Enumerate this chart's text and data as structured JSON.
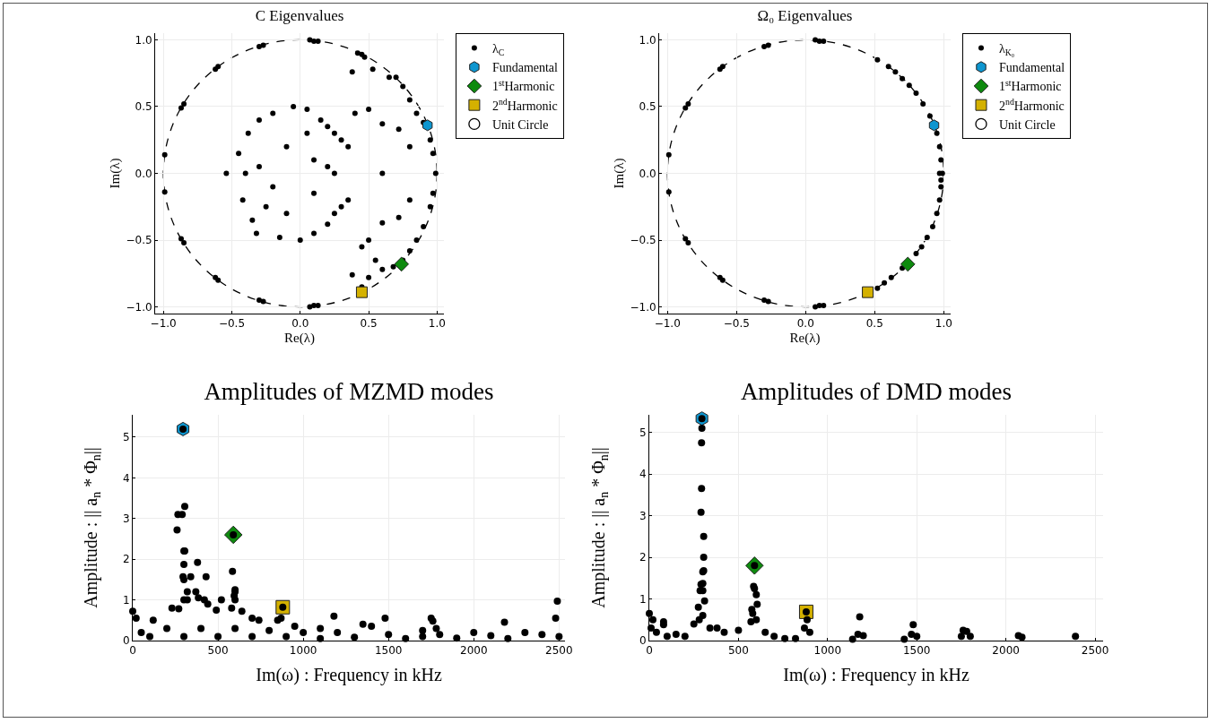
{
  "chart_data": [
    {
      "type": "scatter",
      "title": "C Eigenvalues",
      "xlabel": "Re(λ)",
      "ylabel": "Im(λ)",
      "grid": true,
      "legend": "top right",
      "annotations": [
        "Unit Circle"
      ],
      "xlim": [
        -1.06,
        1.05
      ],
      "ylim": [
        -1.05,
        1.05
      ],
      "xticks": [
        {
          "value": -1,
          "label": "−1.0"
        },
        {
          "value": -0.5,
          "label": "−0.5"
        },
        {
          "value": 0,
          "label": "0.0"
        },
        {
          "value": 0.5,
          "label": "0.5"
        },
        {
          "value": 1,
          "label": "1.0"
        }
      ],
      "yticks": [
        {
          "value": -1,
          "label": "−1.0"
        },
        {
          "value": -0.5,
          "label": "−0.5"
        },
        {
          "value": 0,
          "label": "0.0"
        },
        {
          "value": 0.5,
          "label": "0.5"
        },
        {
          "value": 1,
          "label": "1.0"
        }
      ],
      "series": [
        {
          "name": "λ$_{C}$",
          "color": "#000000",
          "marker": "circle",
          "x": [
            -0.45,
            -0.42,
            -0.38,
            -0.35,
            -0.3,
            -0.32,
            -0.2,
            -0.15,
            -0.05,
            0.0,
            0.05,
            0.1,
            0.15,
            0.2,
            0.25,
            0.3,
            0.35,
            0.3,
            0.35,
            0.25,
            0.2,
            -0.1,
            -0.2,
            0.1,
            0.1,
            -0.3,
            -0.25,
            0.2,
            -0.1,
            0.05,
            -0.54,
            -0.4,
            0.25,
            0.4,
            0.5,
            0.45,
            0.5,
            0.6,
            0.6,
            0.6,
            0.38,
            0.53,
            0.65,
            0.7,
            0.75,
            0.8,
            0.85,
            0.9,
            0.95,
            0.97,
            0.99,
            0.97,
            0.95,
            0.9,
            0.85,
            0.8,
            0.75,
            0.68,
            0.6,
            0.5,
            0.45,
            0.38,
            0.55,
            0.72,
            0.72,
            0.8,
            0.8,
            0.07,
            0.1,
            0.13,
            -0.27,
            -0.3,
            -0.62,
            -0.6,
            -0.87,
            -0.85,
            -0.99,
            -0.99,
            -0.87,
            -0.85,
            -0.62,
            -0.6,
            -0.27,
            -0.3,
            0.07,
            0.1,
            0.13,
            0.42,
            0.45,
            0.47
          ],
          "values": [
            0.15,
            -0.2,
            0.3,
            -0.35,
            0.4,
            -0.45,
            0.45,
            -0.48,
            0.5,
            -0.5,
            0.48,
            -0.45,
            0.4,
            0.35,
            0.3,
            0.25,
            0.2,
            -0.25,
            -0.2,
            -0.3,
            -0.38,
            0.2,
            -0.1,
            0.1,
            -0.15,
            0.05,
            -0.25,
            0.05,
            -0.3,
            0.3,
            0.0,
            0.0,
            0.0,
            0.45,
            0.48,
            -0.55,
            -0.5,
            0.37,
            -0.37,
            0.0,
            0.76,
            0.78,
            0.72,
            0.72,
            0.65,
            0.55,
            0.45,
            0.38,
            0.25,
            0.15,
            0.0,
            -0.15,
            -0.25,
            -0.4,
            -0.5,
            -0.58,
            -0.65,
            -0.7,
            -0.72,
            -0.78,
            -0.85,
            -0.76,
            -0.65,
            0.33,
            -0.33,
            0.2,
            -0.2,
            1.0,
            0.99,
            0.99,
            0.96,
            0.95,
            0.78,
            0.8,
            0.49,
            0.52,
            0.14,
            -0.14,
            -0.49,
            -0.52,
            -0.78,
            -0.8,
            -0.96,
            -0.95,
            -1.0,
            -0.99,
            -0.99,
            0.9,
            0.89,
            0.87
          ]
        },
        {
          "name": "Fundamental",
          "color": "#0d96d0",
          "x": [
            0.93
          ],
          "values": [
            0.36
          ]
        },
        {
          "name": "1$^{st}$Harmonic",
          "color": "#0e8a0e",
          "marker": "diamond",
          "x": [
            0.74
          ],
          "values": [
            -0.68
          ]
        },
        {
          "name": "2$^{nd}$Harmonic",
          "color": "#d4b100",
          "marker": "square",
          "x": [
            0.45
          ],
          "values": [
            -0.89
          ]
        }
      ]
    },
    {
      "type": "scatter",
      "title": "Ω₀ Eigenvalues",
      "xlabel": "Re(λ)",
      "ylabel": "Im(λ)",
      "grid": true,
      "legend": "top right",
      "annotations": [
        "Unit Circle"
      ],
      "xlim": [
        -1.06,
        1.05
      ],
      "ylim": [
        -1.05,
        1.05
      ],
      "xticks": [
        {
          "value": -1,
          "label": "−1.0"
        },
        {
          "value": -0.5,
          "label": "−0.5"
        },
        {
          "value": 0,
          "label": "0.0"
        },
        {
          "value": 0.5,
          "label": "0.5"
        },
        {
          "value": 1,
          "label": "1.0"
        }
      ],
      "yticks": [
        {
          "value": -1,
          "label": "−1.0"
        },
        {
          "value": -0.5,
          "label": "−0.5"
        },
        {
          "value": 0,
          "label": "0.0"
        },
        {
          "value": 0.5,
          "label": "0.5"
        },
        {
          "value": 1,
          "label": "1.0"
        }
      ],
      "series": [
        {
          "name": "λ$_{K₀}$",
          "color": "#000000",
          "marker": "circle",
          "x": [
            0.52,
            0.6,
            0.65,
            0.7,
            0.75,
            0.8,
            0.85,
            0.9,
            0.95,
            0.97,
            0.98,
            0.99,
            0.98,
            0.98,
            0.97,
            0.95,
            0.92,
            0.88,
            0.84,
            0.8,
            0.7,
            0.62,
            0.57,
            0.52,
            0.97,
            0.07,
            0.1,
            0.13,
            -0.27,
            -0.3,
            -0.62,
            -0.6,
            -0.87,
            -0.85,
            -0.99,
            -0.99,
            -0.87,
            -0.85,
            -0.62,
            -0.6,
            -0.27,
            -0.3,
            0.07,
            0.1,
            0.13
          ],
          "values": [
            0.85,
            0.8,
            0.76,
            0.71,
            0.66,
            0.6,
            0.52,
            0.43,
            0.3,
            0.2,
            0.1,
            0.0,
            -0.05,
            -0.1,
            -0.2,
            -0.3,
            -0.4,
            -0.48,
            -0.55,
            -0.6,
            -0.71,
            -0.78,
            -0.82,
            -0.86,
            0.0,
            1.0,
            0.99,
            0.99,
            0.96,
            0.95,
            0.78,
            0.8,
            0.49,
            0.52,
            0.14,
            -0.14,
            -0.49,
            -0.52,
            -0.78,
            -0.8,
            -0.96,
            -0.95,
            -1.0,
            -0.99,
            -0.99
          ]
        },
        {
          "name": "Fundamental",
          "color": "#0d96d0",
          "x": [
            0.93
          ],
          "values": [
            0.36
          ]
        },
        {
          "name": "1$^{st}$Harmonic",
          "color": "#0e8a0e",
          "marker": "diamond",
          "x": [
            0.74
          ],
          "values": [
            -0.68
          ]
        },
        {
          "name": "2$^{nd}$Harmonic",
          "color": "#d4b100",
          "marker": "square",
          "x": [
            0.45
          ],
          "values": [
            -0.89
          ]
        }
      ]
    },
    {
      "type": "scatter",
      "title": "Amplitudes of MZMD modes",
      "xlabel": "Im(ω) : Frequency in kHz",
      "ylabel": "Amplitude : || a$_{n}$ * Φ$_{n}$||",
      "grid": true,
      "xlim": [
        0,
        2535
      ],
      "ylim": [
        0,
        5.55
      ],
      "xticks": [
        0,
        500,
        1000,
        1500,
        2000,
        2500
      ],
      "yticks": [
        0,
        1,
        2,
        3,
        4,
        5
      ],
      "series": [
        {
          "color": "#0d96d0",
          "x": [
            295
          ],
          "values": [
            5.2
          ]
        },
        {
          "color": "#0e8a0e",
          "marker": "diamond",
          "x": [
            590
          ],
          "values": [
            2.6
          ]
        },
        {
          "color": "#d4b100",
          "marker": "square",
          "x": [
            880
          ],
          "values": [
            0.82
          ]
        },
        {
          "color": "#000000",
          "marker": "circle",
          "x": [
            295,
            265,
            290,
            305,
            260,
            300,
            305,
            300,
            380,
            295,
            340,
            430,
            300,
            320,
            370,
            385,
            420,
            300,
            320,
            440,
            520,
            490,
            590,
            585,
            600,
            600,
            595,
            600,
            580,
            640,
            880,
            870,
            1180,
            1480,
            1750,
            1760,
            1780,
            2180,
            2490,
            2480,
            0,
            20,
            120,
            230,
            270,
            700,
            740,
            850,
            950,
            1100,
            1350,
            1400,
            1700,
            2000,
            2300,
            2400,
            50,
            200,
            400,
            600,
            800,
            1000,
            1200,
            1500,
            1800,
            2100,
            2500,
            100,
            300,
            500,
            700,
            900,
            1100,
            1300,
            1600,
            1900,
            2200,
            1700
          ],
          "values": [
            5.2,
            3.1,
            3.1,
            3.3,
            2.72,
            2.2,
            2.2,
            1.87,
            1.92,
            1.57,
            1.57,
            1.57,
            1.5,
            1.2,
            1.2,
            1.05,
            1.0,
            1.0,
            1.0,
            0.9,
            1.0,
            0.75,
            2.6,
            1.7,
            1.25,
            1.2,
            1.1,
            1.0,
            0.8,
            0.72,
            0.82,
            0.55,
            0.6,
            0.55,
            0.55,
            0.48,
            0.3,
            0.45,
            0.97,
            0.55,
            0.72,
            0.55,
            0.5,
            0.8,
            0.78,
            0.55,
            0.5,
            0.5,
            0.35,
            0.3,
            0.4,
            0.35,
            0.25,
            0.2,
            0.2,
            0.15,
            0.2,
            0.3,
            0.3,
            0.3,
            0.25,
            0.2,
            0.2,
            0.15,
            0.15,
            0.12,
            0.1,
            0.1,
            0.1,
            0.1,
            0.1,
            0.1,
            0.05,
            0.08,
            0.05,
            0.06,
            0.05,
            0.1
          ]
        }
      ]
    },
    {
      "type": "scatter",
      "title": "Amplitudes of DMD modes",
      "xlabel": "Im(ω) : Frequency in kHz",
      "ylabel": "Amplitude : || a$_{n}$ * Φ$_{n}$||",
      "grid": true,
      "xlim": [
        0,
        2545
      ],
      "ylim": [
        0,
        5.42
      ],
      "xticks": [
        0,
        500,
        1000,
        1500,
        2000,
        2500
      ],
      "yticks": [
        0,
        1,
        2,
        3,
        4,
        5
      ],
      "series": [
        {
          "color": "#0d96d0",
          "x": [
            295
          ],
          "values": [
            5.33
          ]
        },
        {
          "color": "#0e8a0e",
          "marker": "diamond",
          "x": [
            590
          ],
          "values": [
            1.8
          ]
        },
        {
          "color": "#d4b100",
          "marker": "square",
          "x": [
            880
          ],
          "values": [
            0.69
          ]
        },
        {
          "color": "#000000",
          "marker": "circle",
          "x": [
            295,
            295,
            293,
            293,
            290,
            305,
            305,
            300,
            305,
            290,
            300,
            285,
            300,
            310,
            275,
            300,
            280,
            250,
            590,
            585,
            590,
            600,
            605,
            575,
            580,
            600,
            570,
            880,
            885,
            870,
            900,
            1180,
            1170,
            1200,
            1480,
            1470,
            1500,
            1760,
            1780,
            1750,
            1800,
            2070,
            2090,
            2390,
            0,
            20,
            80,
            80,
            10,
            40,
            100,
            150,
            200,
            340,
            380,
            420,
            500,
            650,
            700,
            760,
            820,
            1140,
            1430
          ],
          "values": [
            5.33,
            5.1,
            4.75,
            3.65,
            3.08,
            2.5,
            2.0,
            1.65,
            1.68,
            1.35,
            1.37,
            1.2,
            1.2,
            0.95,
            0.8,
            0.6,
            0.5,
            0.4,
            1.8,
            1.3,
            1.25,
            1.1,
            0.87,
            0.75,
            0.65,
            0.5,
            0.45,
            0.69,
            0.5,
            0.3,
            0.2,
            0.57,
            0.15,
            0.12,
            0.38,
            0.15,
            0.1,
            0.25,
            0.22,
            0.1,
            0.1,
            0.12,
            0.08,
            0.1,
            0.65,
            0.5,
            0.45,
            0.38,
            0.3,
            0.2,
            0.1,
            0.15,
            0.1,
            0.3,
            0.3,
            0.2,
            0.25,
            0.2,
            0.1,
            0.05,
            0.05,
            0.03,
            0.03
          ]
        }
      ]
    }
  ]
}
